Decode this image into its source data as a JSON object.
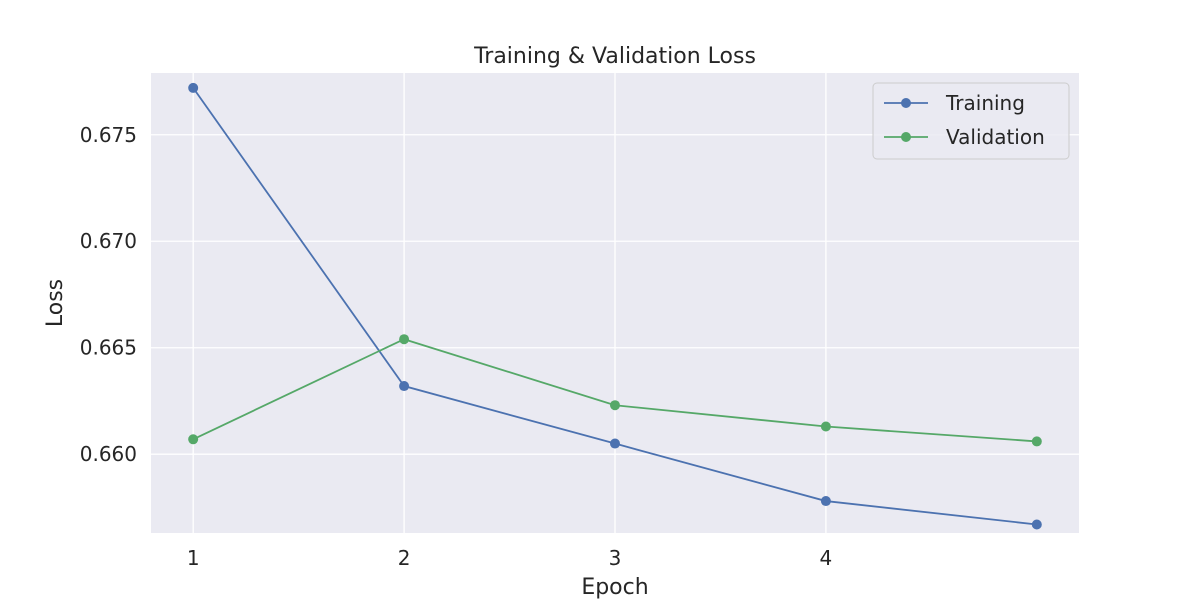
{
  "chart_data": {
    "type": "line",
    "title": "Training & Validation Loss",
    "xlabel": "Epoch",
    "ylabel": "Loss",
    "x": [
      1,
      2,
      3,
      4,
      5
    ],
    "xticks": [
      "1",
      "2",
      "3",
      "4"
    ],
    "yticks": [
      "0.660",
      "0.665",
      "0.670",
      "0.675"
    ],
    "xlim": [
      0.8,
      5.2
    ],
    "ylim": [
      0.6563,
      0.6779
    ],
    "grid": true,
    "legend_position": "top-right",
    "series": [
      {
        "name": "Training",
        "color": "#4c72b0",
        "values": [
          0.6772,
          0.6632,
          0.6605,
          0.6578,
          0.6567
        ]
      },
      {
        "name": "Validation",
        "color": "#55a868",
        "values": [
          0.6607,
          0.6654,
          0.6623,
          0.6613,
          0.6606
        ]
      }
    ]
  },
  "colors": {
    "plot_background": "#eaeaf2",
    "grid": "#ffffff",
    "text": "#262626"
  }
}
